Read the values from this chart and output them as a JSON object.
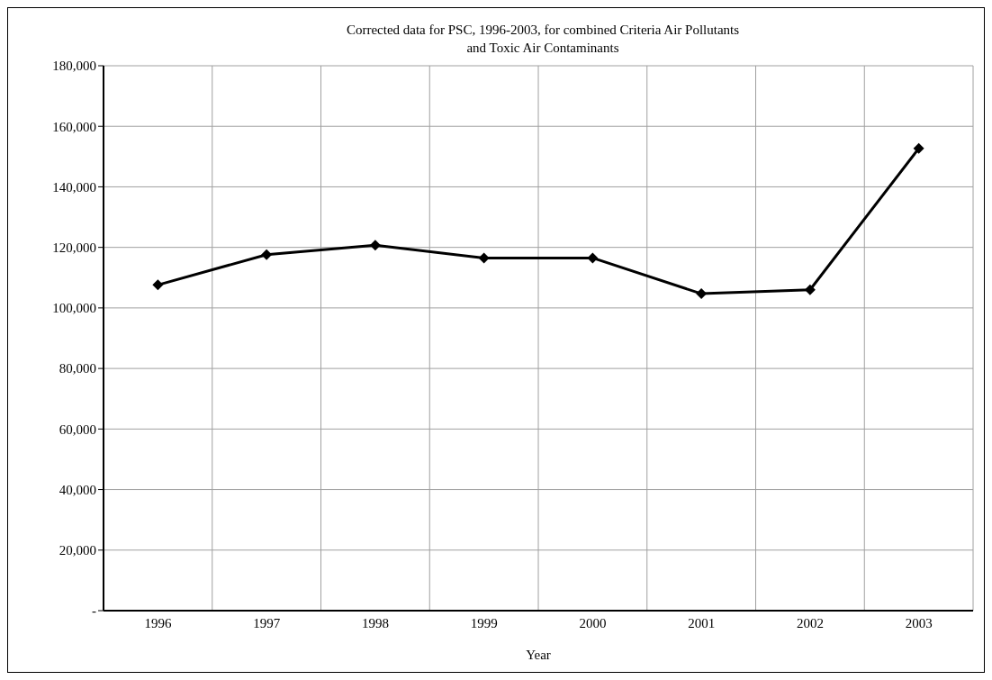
{
  "chart_data": {
    "type": "line",
    "title": "Corrected data for PSC, 1996-2003, for combined Criteria Air Pollutants\nand Toxic Air Contaminants",
    "xlabel": "Year",
    "categories": [
      "1996",
      "1997",
      "1998",
      "1999",
      "2000",
      "2001",
      "2002",
      "2003"
    ],
    "series": [
      {
        "color": "#000000",
        "values": [
          107600,
          117600,
          120700,
          116500,
          116500,
          104700,
          106000,
          152700
        ]
      }
    ],
    "ylim": [
      0,
      180000
    ],
    "yticks": [
      {
        "value": 0,
        "label": "-"
      },
      {
        "value": 20000,
        "label": "20,000"
      },
      {
        "value": 40000,
        "label": "40,000"
      },
      {
        "value": 60000,
        "label": "60,000"
      },
      {
        "value": 80000,
        "label": "80,000"
      },
      {
        "value": 100000,
        "label": "100,000"
      },
      {
        "value": 120000,
        "label": "120,000"
      },
      {
        "value": 140000,
        "label": "140,000"
      },
      {
        "value": 160000,
        "label": "160,000"
      },
      {
        "value": 180000,
        "label": "180,000"
      }
    ],
    "grid": true,
    "marker": "diamond",
    "line_style": "solid",
    "legend": false
  }
}
